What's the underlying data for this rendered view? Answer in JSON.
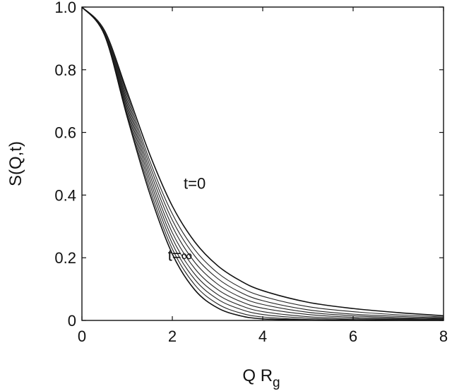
{
  "chart_data": {
    "type": "line",
    "title": "",
    "xlabel": "Q R",
    "xlabel_sub": "g",
    "ylabel": "S(Q,t)",
    "xlim": [
      0,
      8
    ],
    "ylim": [
      0,
      1.0
    ],
    "x_ticks": [
      0,
      2,
      4,
      6,
      8
    ],
    "x_tick_labels": [
      "0",
      "2",
      "4",
      "6",
      "8"
    ],
    "y_ticks": [
      0,
      0.2,
      0.4,
      0.6,
      0.8,
      1.0
    ],
    "y_tick_labels": [
      "0",
      "0.2",
      "0.4",
      "0.6",
      "0.8",
      "1.0"
    ],
    "grid": false,
    "x": [
      0,
      0.5,
      1,
      1.5,
      2,
      2.5,
      3,
      3.5,
      4,
      5,
      6,
      7,
      8
    ],
    "series": [
      {
        "values": [
          1.0,
          0.925,
          0.73,
          0.53,
          0.365,
          0.25,
          0.175,
          0.127,
          0.095,
          0.058,
          0.038,
          0.025,
          0.015
        ]
      },
      {
        "values": [
          1.0,
          0.923,
          0.72,
          0.51,
          0.34,
          0.225,
          0.152,
          0.106,
          0.077,
          0.044,
          0.028,
          0.018,
          0.011
        ]
      },
      {
        "values": [
          1.0,
          0.921,
          0.71,
          0.495,
          0.32,
          0.205,
          0.134,
          0.09,
          0.063,
          0.034,
          0.02,
          0.013,
          0.008
        ]
      },
      {
        "values": [
          1.0,
          0.92,
          0.7,
          0.48,
          0.3,
          0.185,
          0.116,
          0.075,
          0.051,
          0.026,
          0.015,
          0.009,
          0.006
        ]
      },
      {
        "values": [
          1.0,
          0.918,
          0.69,
          0.465,
          0.28,
          0.165,
          0.099,
          0.061,
          0.039,
          0.019,
          0.01,
          0.006,
          0.004
        ]
      },
      {
        "values": [
          1.0,
          0.917,
          0.68,
          0.45,
          0.262,
          0.147,
          0.083,
          0.048,
          0.028,
          0.012,
          0.006,
          0.004,
          0.002
        ]
      },
      {
        "values": [
          1.0,
          0.915,
          0.67,
          0.435,
          0.245,
          0.13,
          0.068,
          0.036,
          0.019,
          0.007,
          0.003,
          0.002,
          0.001
        ]
      },
      {
        "values": [
          1.0,
          0.913,
          0.66,
          0.42,
          0.228,
          0.113,
          0.053,
          0.024,
          0.011,
          0.003,
          0.001,
          0.0,
          0.0
        ]
      },
      {
        "values": [
          1.0,
          0.911,
          0.65,
          0.405,
          0.212,
          0.097,
          0.04,
          0.015,
          0.005,
          0.001,
          0.0,
          0.0,
          0.0
        ]
      }
    ],
    "annotations": [
      {
        "text": "t=0",
        "x": 2.25,
        "y": 0.42
      },
      {
        "text": "t=∞",
        "x": 1.9,
        "y": 0.19
      }
    ]
  }
}
